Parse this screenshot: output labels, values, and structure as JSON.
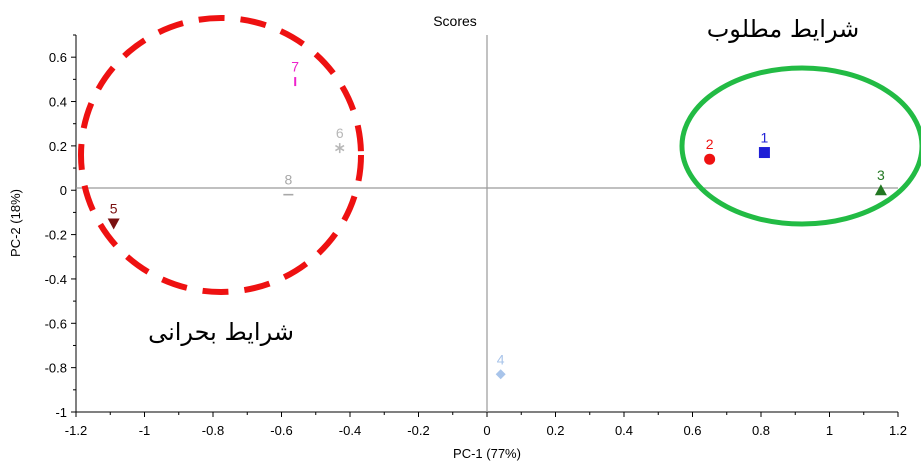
{
  "chart_data": {
    "type": "scatter",
    "title": "Scores",
    "xlabel": "PC-1 (77%)",
    "ylabel": "PC-2 (18%)",
    "xlim": [
      -1.2,
      1.2
    ],
    "ylim": [
      -1,
      0.7
    ],
    "xticks": [
      "-1.2",
      "-1",
      "-0.8",
      "-0.6",
      "-0.4",
      "-0.2",
      "0",
      "0.2",
      "0.4",
      "0.6",
      "0.8",
      "1",
      "1.2"
    ],
    "yticks": [
      "0.6",
      "0.4",
      "0.2",
      "0",
      "-0.2",
      "-0.4",
      "-0.6",
      "-0.8",
      "-1"
    ],
    "xtick_values": [
      -1.2,
      -1,
      -0.8,
      -0.6,
      -0.4,
      -0.2,
      0,
      0.2,
      0.4,
      0.6,
      0.8,
      1,
      1.2
    ],
    "ytick_values": [
      0.6,
      0.4,
      0.2,
      0,
      -0.2,
      -0.4,
      -0.6,
      -0.8,
      -1
    ],
    "points": [
      {
        "label": "1",
        "x": 0.81,
        "y": 0.17,
        "marker": "square",
        "color": "#1f1fd6"
      },
      {
        "label": "2",
        "x": 0.65,
        "y": 0.14,
        "marker": "circle",
        "color": "#ee1111"
      },
      {
        "label": "3",
        "x": 1.15,
        "y": 0.0,
        "marker": "triangle-up",
        "color": "#227722"
      },
      {
        "label": "4",
        "x": 0.04,
        "y": -0.83,
        "marker": "diamond",
        "color": "#a8c4ea"
      },
      {
        "label": "5",
        "x": -1.09,
        "y": -0.15,
        "marker": "triangle-down",
        "color": "#7a1010"
      },
      {
        "label": "6",
        "x": -0.43,
        "y": 0.19,
        "marker": "asterisk",
        "color": "#b8b8b8"
      },
      {
        "label": "7",
        "x": -0.56,
        "y": 0.49,
        "marker": "vline",
        "color": "#ee22cc"
      },
      {
        "label": "8",
        "x": -0.58,
        "y": -0.02,
        "marker": "hline",
        "color": "#a8a8a8"
      }
    ],
    "annotations": {
      "good_region": "شرایط مطلوب",
      "critical_region": "شرایط بحرانی",
      "good_region_color": "#22bb44",
      "critical_region_color": "#ee1111"
    },
    "grid": false,
    "legend": "none"
  }
}
